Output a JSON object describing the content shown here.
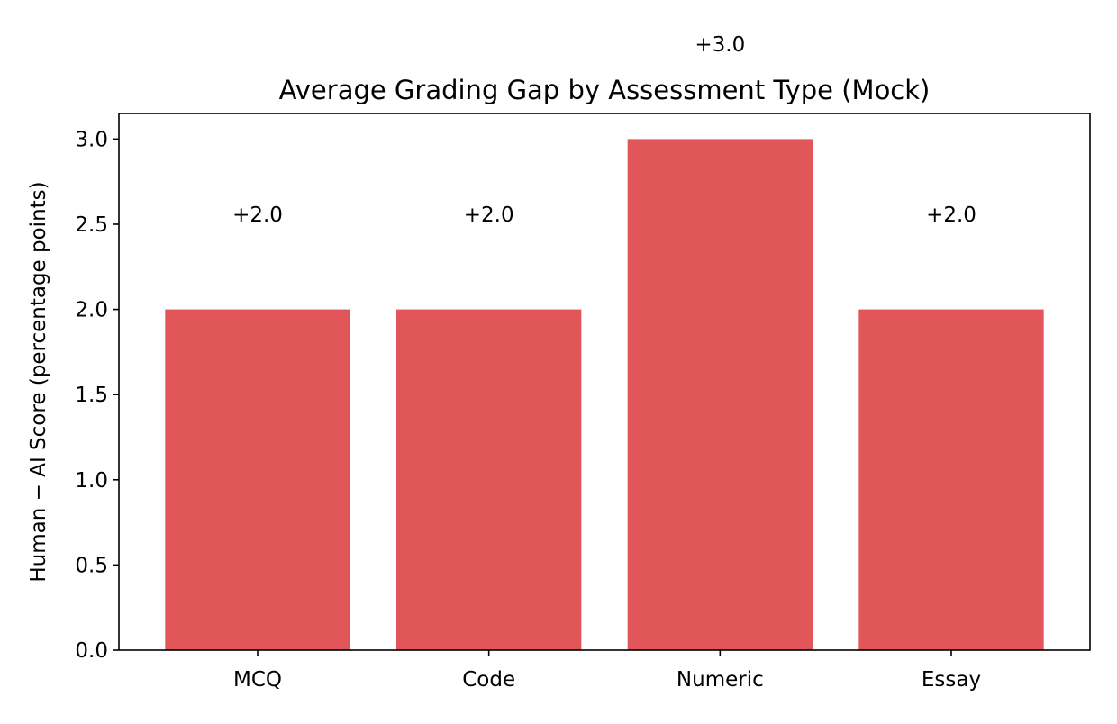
{
  "chart_data": {
    "type": "bar",
    "title": "Average Grading Gap by Assessment Type (Mock)",
    "xlabel": "",
    "ylabel": "Human − AI Score (percentage points)",
    "categories": [
      "MCQ",
      "Code",
      "Numeric",
      "Essay"
    ],
    "values": [
      2.0,
      2.0,
      3.0,
      2.0
    ],
    "data_labels": [
      "+2.0",
      "+2.0",
      "+3.0",
      "+2.0"
    ],
    "ylim": [
      0,
      3.15
    ],
    "yticks": [
      0.0,
      0.5,
      1.0,
      1.5,
      2.0,
      2.5,
      3.0
    ],
    "ytick_labels": [
      "0.0",
      "0.5",
      "1.0",
      "1.5",
      "2.0",
      "2.5",
      "3.0"
    ],
    "bar_color": "#e15759",
    "grid": false,
    "legend": "none"
  }
}
